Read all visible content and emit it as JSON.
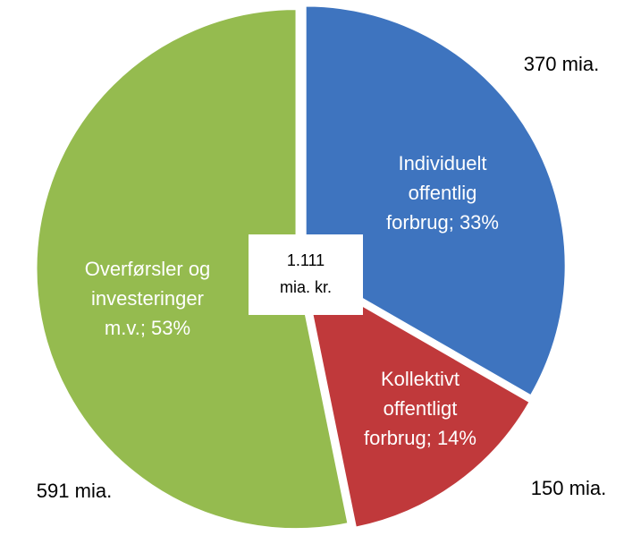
{
  "chart_data": {
    "type": "pie",
    "categories": [
      [
        "Individuelt",
        "offentlig",
        "forbrug; 33%"
      ],
      [
        "Kollektivt",
        "offentligt",
        "forbrug; 14%"
      ],
      [
        "Overførsler og",
        "investeringer",
        "m.v.; 53%"
      ]
    ],
    "values": [
      370,
      150,
      591
    ],
    "value_labels": [
      "370 mia.",
      "150 mia.",
      "591 mia."
    ],
    "colors": [
      "#3e74bf",
      "#c0393b",
      "#95bb4f"
    ],
    "center_label": [
      "1.111",
      "mia. kr."
    ]
  }
}
